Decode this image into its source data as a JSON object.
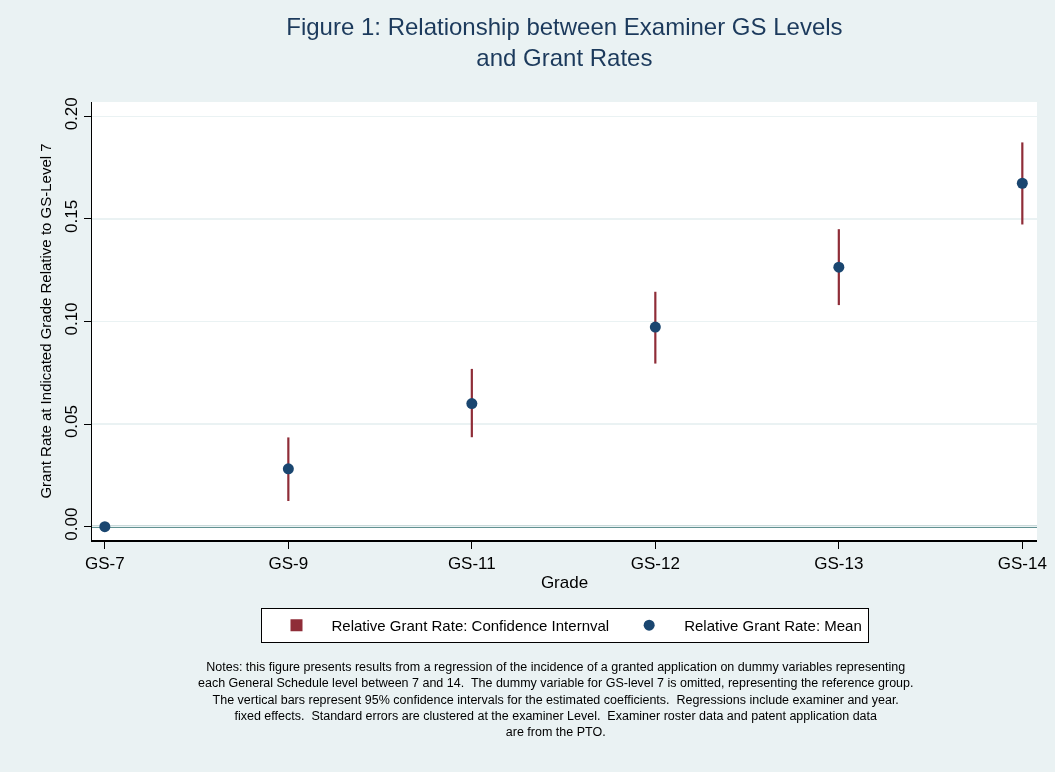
{
  "chart_data": {
    "type": "scatter",
    "title": "Figure 1: Relationship between Examiner GS Levels\nand Grant Rates",
    "xlabel": "Grade",
    "ylabel": "Grant Rate at Indicated Grade Relative to GS-Level 7",
    "categories": [
      "GS-7",
      "GS-9",
      "GS-11",
      "GS-12",
      "GS-13",
      "GS-14"
    ],
    "series": [
      {
        "name": "Relative Grant Rate: Confidence Internval",
        "type": "bar",
        "color": "#8f2d38",
        "base": [
          null,
          0.0125,
          0.0436,
          0.0795,
          0.108,
          0.1473
        ],
        "values": [
          null,
          0.031,
          0.0333,
          0.035,
          0.037,
          0.04
        ]
      },
      {
        "name": "Relative Grant Rate: Mean",
        "color": "#1a4670",
        "marker": "circle",
        "values": [
          0,
          0.0282,
          0.06,
          0.0973,
          0.1265,
          0.1674
        ]
      }
    ],
    "ylim": [
      -0.0065,
      0.207
    ],
    "yticks": [
      {
        "value": 0,
        "label": "0.00"
      },
      {
        "value": 0.05,
        "label": "0.05"
      },
      {
        "value": 0.1,
        "label": "0.10"
      },
      {
        "value": 0.15,
        "label": "0.15"
      },
      {
        "value": 0.2,
        "label": "0.20"
      }
    ],
    "grid": "y",
    "legend": "bottom",
    "ref_lines": [
      {
        "axis": "y",
        "value": 0,
        "color": "#2e6e6e"
      }
    ],
    "annotations": [
      "Notes: this figure presents results from a regression of the incidence of a granted application on dummy variables representing\neach General Schedule level between 7 and 14.  The dummy variable for GS-level 7 is omitted, representing the reference group.\nThe vertical bars represent 95% confidence intervals for the estimated coefficients.  Regressions include examiner and year.\nfixed effects.  Standard errors are clustered at the examiner Level.  Examiner roster data and patent application data\nare from the PTO."
    ]
  }
}
